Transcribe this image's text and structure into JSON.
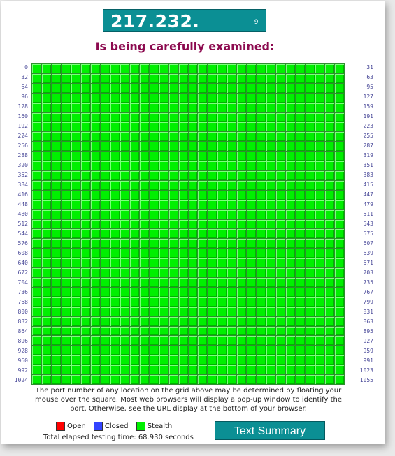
{
  "header": {
    "ip_address": "217.232.",
    "ip_tail": "9",
    "status_text": "Is being carefully examined:"
  },
  "grid": {
    "left_labels": [
      "0",
      "32",
      "64",
      "96",
      "128",
      "160",
      "192",
      "224",
      "256",
      "288",
      "320",
      "352",
      "384",
      "416",
      "448",
      "480",
      "512",
      "544",
      "576",
      "608",
      "640",
      "672",
      "704",
      "736",
      "768",
      "800",
      "832",
      "864",
      "896",
      "928",
      "960",
      "992",
      "1024"
    ],
    "right_labels": [
      "31",
      "63",
      "95",
      "127",
      "159",
      "191",
      "223",
      "255",
      "287",
      "319",
      "351",
      "383",
      "415",
      "447",
      "479",
      "511",
      "543",
      "575",
      "607",
      "639",
      "671",
      "703",
      "735",
      "767",
      "799",
      "831",
      "863",
      "895",
      "927",
      "959",
      "991",
      "1023",
      "1055"
    ]
  },
  "explanation": "The port number of any location on the grid above may be determined by floating your mouse over the square. Most web browsers will display a pop-up window to identify the port. Otherwise, see the URL display at the bottom of your browser.",
  "legend": [
    {
      "label": "Open",
      "color": "#ff0000"
    },
    {
      "label": "Closed",
      "color": "#3344ff"
    },
    {
      "label": "Stealth",
      "color": "#00f000"
    }
  ],
  "elapsed_text": "Total elapsed testing time: 68.930 seconds",
  "summary_button": "Text Summary",
  "colors": {
    "accent": "#0b8f94",
    "title": "#8c0a4f",
    "stealth": "#00f000"
  }
}
